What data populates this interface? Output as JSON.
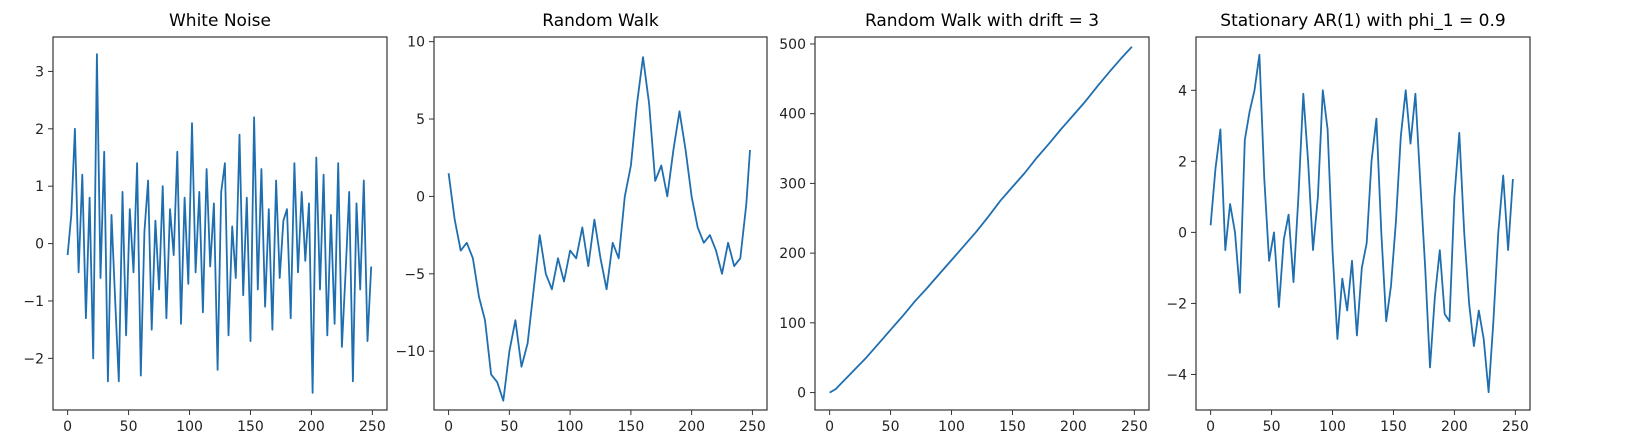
{
  "chart_data": [
    {
      "type": "line",
      "title": "White Noise",
      "xlim": [
        -12,
        262
      ],
      "ylim": [
        -2.9,
        3.6
      ],
      "xticks": [
        0,
        50,
        100,
        150,
        200,
        250
      ],
      "xtick_labels": [
        "0",
        "50",
        "100",
        "150",
        "200",
        "250"
      ],
      "yticks": [
        3,
        2,
        1,
        0,
        -1,
        -2
      ],
      "ytick_labels": [
        "3",
        "2",
        "1",
        "0",
        "−1",
        "−2"
      ],
      "color": "#1f6fb0",
      "series": [
        {
          "x": [
            0,
            3,
            6,
            9,
            12,
            15,
            18,
            21,
            24,
            27,
            30,
            33,
            36,
            39,
            42,
            45,
            48,
            51,
            54,
            57,
            60,
            63,
            66,
            69,
            72,
            75,
            78,
            81,
            84,
            87,
            90,
            93,
            96,
            99,
            102,
            105,
            108,
            111,
            114,
            117,
            120,
            123,
            126,
            129,
            132,
            135,
            138,
            141,
            144,
            147,
            150,
            153,
            156,
            159,
            162,
            165,
            168,
            171,
            174,
            177,
            180,
            183,
            186,
            189,
            192,
            195,
            198,
            201,
            204,
            207,
            210,
            213,
            216,
            219,
            222,
            225,
            228,
            231,
            234,
            237,
            240,
            243,
            246,
            249
          ],
          "y": [
            -0.2,
            0.5,
            2.0,
            -0.5,
            1.2,
            -1.3,
            0.8,
            -2.0,
            3.3,
            -0.6,
            1.6,
            -2.4,
            0.5,
            -1.0,
            -2.4,
            0.9,
            -1.6,
            0.6,
            -0.5,
            1.4,
            -2.3,
            0.2,
            1.1,
            -1.5,
            0.4,
            -0.8,
            1.0,
            -1.3,
            0.6,
            -0.2,
            1.6,
            -1.4,
            0.8,
            -0.7,
            2.1,
            -0.5,
            0.9,
            -1.2,
            1.3,
            -0.4,
            0.7,
            -2.2,
            0.9,
            1.4,
            -1.6,
            0.3,
            -0.6,
            1.9,
            -0.9,
            0.8,
            -1.7,
            2.2,
            -0.8,
            1.3,
            -1.1,
            0.6,
            -1.5,
            1.1,
            -0.6,
            0.4,
            0.6,
            -1.3,
            1.4,
            -0.5,
            0.9,
            -0.3,
            0.7,
            -2.6,
            1.5,
            -0.8,
            1.2,
            -1.6,
            0.5,
            -1.4,
            1.4,
            -1.8,
            -0.5,
            0.9,
            -2.4,
            0.7,
            -0.8,
            1.1,
            -1.7,
            -0.4
          ]
        }
      ]
    },
    {
      "type": "line",
      "title": "Random Walk",
      "xlim": [
        -12,
        262
      ],
      "ylim": [
        -13.8,
        10.3
      ],
      "xticks": [
        0,
        50,
        100,
        150,
        200,
        250
      ],
      "xtick_labels": [
        "0",
        "50",
        "100",
        "150",
        "200",
        "250"
      ],
      "yticks": [
        10,
        5,
        0,
        -5,
        -10
      ],
      "ytick_labels": [
        "10",
        "5",
        "0",
        "−5",
        "−10"
      ],
      "color": "#1f6fb0",
      "series": [
        {
          "x": [
            0,
            5,
            10,
            15,
            20,
            25,
            30,
            35,
            40,
            45,
            50,
            55,
            60,
            65,
            70,
            75,
            80,
            85,
            90,
            95,
            100,
            105,
            110,
            115,
            120,
            125,
            130,
            135,
            140,
            145,
            150,
            155,
            160,
            165,
            170,
            175,
            180,
            185,
            190,
            195,
            200,
            205,
            210,
            215,
            220,
            225,
            230,
            235,
            240,
            245,
            248
          ],
          "y": [
            1.5,
            -1.5,
            -3.5,
            -3.0,
            -4.0,
            -6.5,
            -8.0,
            -11.5,
            -12.0,
            -13.2,
            -10.0,
            -8.0,
            -11.0,
            -9.5,
            -6.0,
            -2.5,
            -5.0,
            -6.0,
            -4.0,
            -5.5,
            -3.5,
            -4.0,
            -2.0,
            -4.5,
            -1.5,
            -4.0,
            -6.0,
            -3.0,
            -4.0,
            0.0,
            2.0,
            6.0,
            9.0,
            6.0,
            1.0,
            2.0,
            0.0,
            3.0,
            5.5,
            3.0,
            0.0,
            -2.0,
            -3.0,
            -2.5,
            -3.5,
            -5.0,
            -3.0,
            -4.5,
            -4.0,
            -0.5,
            3.0
          ]
        }
      ]
    },
    {
      "type": "line",
      "title": "Random Walk with drift = 3",
      "xlim": [
        -12,
        262
      ],
      "ylim": [
        -25,
        510
      ],
      "xticks": [
        0,
        50,
        100,
        150,
        200,
        250
      ],
      "xtick_labels": [
        "0",
        "50",
        "100",
        "150",
        "200",
        "250"
      ],
      "yticks": [
        500,
        400,
        300,
        200,
        100,
        0
      ],
      "ytick_labels": [
        "500",
        "400",
        "300",
        "200",
        "100",
        "0"
      ],
      "color": "#1f6fb0",
      "series": [
        {
          "x": [
            0,
            5,
            10,
            20,
            30,
            40,
            50,
            60,
            70,
            80,
            90,
            100,
            110,
            120,
            130,
            140,
            150,
            160,
            170,
            180,
            190,
            200,
            210,
            220,
            230,
            240,
            248
          ],
          "y": [
            0,
            5,
            14,
            32,
            50,
            70,
            90,
            110,
            131,
            150,
            170,
            190,
            210,
            230,
            252,
            275,
            295,
            315,
            337,
            357,
            378,
            398,
            418,
            440,
            461,
            481,
            496
          ]
        }
      ]
    },
    {
      "type": "line",
      "title": "Stationary AR(1) with phi_1 = 0.9",
      "xlim": [
        -12,
        262
      ],
      "ylim": [
        -5.0,
        5.5
      ],
      "xticks": [
        0,
        50,
        100,
        150,
        200,
        250
      ],
      "xtick_labels": [
        "0",
        "50",
        "100",
        "150",
        "200",
        "250"
      ],
      "yticks": [
        4,
        2,
        0,
        -2,
        -4
      ],
      "ytick_labels": [
        "4",
        "2",
        "0",
        "−2",
        "−4"
      ],
      "color": "#1f6fb0",
      "series": [
        {
          "x": [
            0,
            4,
            8,
            12,
            16,
            20,
            24,
            28,
            32,
            36,
            40,
            44,
            48,
            52,
            56,
            60,
            64,
            68,
            72,
            76,
            80,
            84,
            88,
            92,
            96,
            100,
            104,
            108,
            112,
            116,
            120,
            124,
            128,
            132,
            136,
            140,
            144,
            148,
            152,
            156,
            160,
            164,
            168,
            172,
            176,
            180,
            184,
            188,
            192,
            196,
            200,
            204,
            208,
            212,
            216,
            220,
            224,
            228,
            232,
            236,
            240,
            244,
            248
          ],
          "y": [
            0.2,
            1.8,
            2.9,
            -0.5,
            0.8,
            0.0,
            -1.7,
            2.6,
            3.4,
            4.0,
            5.0,
            1.5,
            -0.8,
            0.0,
            -2.1,
            -0.2,
            0.5,
            -1.4,
            1.0,
            3.9,
            2.0,
            -0.5,
            1.0,
            4.0,
            2.9,
            -0.5,
            -3.0,
            -1.3,
            -2.2,
            -0.8,
            -2.9,
            -1.0,
            -0.3,
            2.0,
            3.2,
            0.0,
            -2.5,
            -1.5,
            0.3,
            2.7,
            4.0,
            2.5,
            3.9,
            1.4,
            -1.0,
            -3.8,
            -1.8,
            -0.5,
            -2.3,
            -2.5,
            1.0,
            2.8,
            0.0,
            -2.0,
            -3.2,
            -2.2,
            -3.0,
            -4.5,
            -2.5,
            0.0,
            1.6,
            -0.5,
            1.5
          ]
        }
      ]
    }
  ]
}
